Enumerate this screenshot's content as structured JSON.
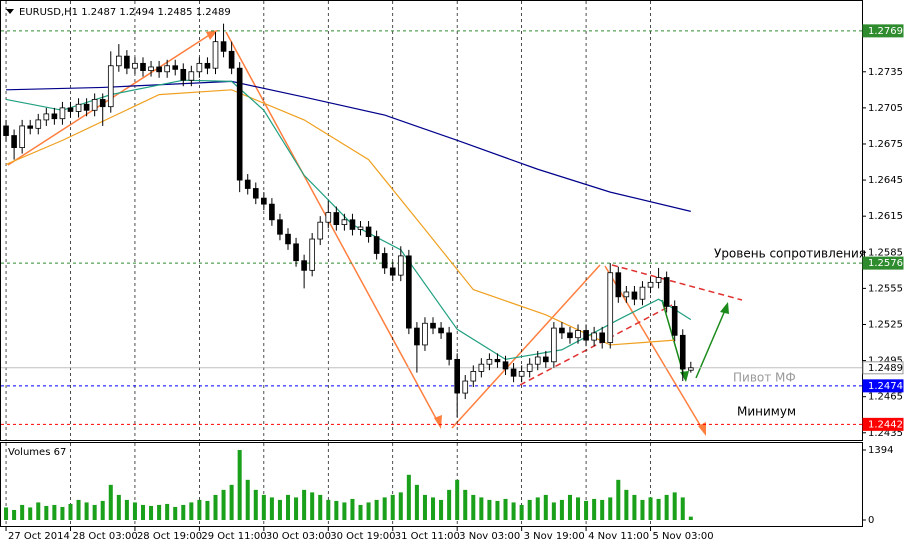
{
  "chart_data": {
    "type": "candlestick",
    "title": "EURUSD,H1  1.2487 1.2494 1.2485 1.2489",
    "open": [
      1.269,
      1.2682,
      1.2672,
      1.269,
      1.2688,
      1.2695,
      1.27,
      1.2696,
      1.2705,
      1.2702,
      1.2708,
      1.2703,
      1.2712,
      1.2706,
      1.274,
      1.2748,
      1.2738,
      1.2742,
      1.2736,
      1.2739,
      1.2735,
      1.274,
      1.2737,
      1.2728,
      1.2735,
      1.2742,
      1.2738,
      1.276,
      1.2752,
      1.2738,
      1.2645,
      1.2638,
      1.263,
      1.2625,
      1.2612,
      1.26,
      1.2592,
      1.2578,
      1.257,
      1.2596,
      1.261,
      1.2618,
      1.2608,
      1.2612,
      1.2604,
      1.2606,
      1.2598,
      1.2584,
      1.2572,
      1.2566,
      1.2582,
      1.2522,
      1.2508,
      1.2526,
      1.2522,
      1.2518,
      1.2496,
      1.2468,
      1.2478,
      1.2486,
      1.2492,
      1.2496,
      1.2494,
      1.2488,
      1.2482,
      1.2486,
      1.2492,
      1.2498,
      1.2494,
      1.2522,
      1.2518,
      1.2514,
      1.252,
      1.2512,
      1.2518,
      1.251,
      1.2568,
      1.2548,
      1.2552,
      1.2546,
      1.2556,
      1.256,
      1.2564,
      1.254,
      1.2516,
      1.2487
    ],
    "high": [
      1.2695,
      1.2687,
      1.2695,
      1.2695,
      1.27,
      1.2705,
      1.2705,
      1.271,
      1.271,
      1.2713,
      1.2713,
      1.2717,
      1.2717,
      1.2752,
      1.2758,
      1.2753,
      1.2747,
      1.2747,
      1.2744,
      1.2744,
      1.2745,
      1.2745,
      1.2742,
      1.274,
      1.2747,
      1.2747,
      1.2768,
      1.2775,
      1.276,
      1.2743,
      1.265,
      1.2643,
      1.2635,
      1.263,
      1.2617,
      1.2605,
      1.2597,
      1.2583,
      1.2601,
      1.2615,
      1.2628,
      1.2623,
      1.2617,
      1.2617,
      1.2611,
      1.2611,
      1.2603,
      1.2589,
      1.2577,
      1.259,
      1.2587,
      1.2527,
      1.2531,
      1.2531,
      1.2527,
      1.2523,
      1.2501,
      1.2483,
      1.2491,
      1.2497,
      1.2501,
      1.2501,
      1.2499,
      1.2493,
      1.2491,
      1.2497,
      1.2503,
      1.2503,
      1.2527,
      1.2527,
      1.2523,
      1.2525,
      1.2525,
      1.2523,
      1.2523,
      1.2576,
      1.2573,
      1.2557,
      1.2557,
      1.2561,
      1.2565,
      1.2572,
      1.2569,
      1.2545,
      1.2521,
      1.2494
    ],
    "low": [
      1.2677,
      1.2662,
      1.2667,
      1.2683,
      1.2683,
      1.269,
      1.2691,
      1.2691,
      1.2697,
      1.2697,
      1.2698,
      1.2698,
      1.269,
      1.2701,
      1.2735,
      1.2733,
      1.2733,
      1.2731,
      1.2731,
      1.273,
      1.273,
      1.2732,
      1.2723,
      1.2723,
      1.273,
      1.2733,
      1.2733,
      1.2747,
      1.2733,
      1.2635,
      1.2633,
      1.2625,
      1.262,
      1.2607,
      1.2595,
      1.2587,
      1.2573,
      1.2555,
      1.2565,
      1.2591,
      1.2605,
      1.2603,
      1.2603,
      1.2599,
      1.2599,
      1.2593,
      1.2579,
      1.2567,
      1.2561,
      1.2561,
      1.2517,
      1.2485,
      1.2503,
      1.2517,
      1.2513,
      1.2491,
      1.2448,
      1.2463,
      1.2473,
      1.2481,
      1.2487,
      1.2489,
      1.2483,
      1.2477,
      1.2477,
      1.2481,
      1.2487,
      1.2489,
      1.2489,
      1.2513,
      1.2509,
      1.2509,
      1.2507,
      1.2507,
      1.2505,
      1.2505,
      1.2543,
      1.2543,
      1.2541,
      1.2541,
      1.2551,
      1.2555,
      1.2535,
      1.2511,
      1.2478,
      1.2485
    ],
    "close": [
      1.2682,
      1.2672,
      1.269,
      1.2688,
      1.2695,
      1.27,
      1.2696,
      1.2705,
      1.2702,
      1.2708,
      1.2703,
      1.2712,
      1.2706,
      1.274,
      1.2748,
      1.2738,
      1.2742,
      1.2736,
      1.2739,
      1.2735,
      1.274,
      1.2737,
      1.2728,
      1.2735,
      1.2742,
      1.2738,
      1.276,
      1.2752,
      1.2738,
      1.2645,
      1.2638,
      1.263,
      1.2625,
      1.2612,
      1.26,
      1.2592,
      1.2578,
      1.257,
      1.2596,
      1.261,
      1.2618,
      1.2608,
      1.2612,
      1.2604,
      1.2606,
      1.2598,
      1.2584,
      1.2572,
      1.2566,
      1.2582,
      1.2522,
      1.2508,
      1.2526,
      1.2522,
      1.2518,
      1.2496,
      1.2468,
      1.2478,
      1.2486,
      1.2492,
      1.2496,
      1.2494,
      1.2488,
      1.2482,
      1.2486,
      1.2492,
      1.2498,
      1.2494,
      1.2522,
      1.2518,
      1.2514,
      1.252,
      1.2512,
      1.2518,
      1.251,
      1.2568,
      1.2548,
      1.2552,
      1.2546,
      1.2556,
      1.256,
      1.2564,
      1.254,
      1.2516,
      1.2488,
      1.2489
    ],
    "up_color": "#ffffff",
    "down_color": "#000000",
    "xlim": [
      -0.75,
      106.25
    ],
    "xticks": [
      {
        "value": 0,
        "label": "27 Oct 2014"
      },
      {
        "value": 8,
        "label": "28 Oct 03:00"
      },
      {
        "value": 16,
        "label": "28 Oct 19:00"
      },
      {
        "value": 24,
        "label": "29 Oct 11:00"
      },
      {
        "value": 32,
        "label": "30 Oct 03:00"
      },
      {
        "value": 40,
        "label": "30 Oct 19:00"
      },
      {
        "value": 48,
        "label": "31 Oct 11:00"
      },
      {
        "value": 56,
        "label": "3 Nov 03:00"
      },
      {
        "value": 64,
        "label": "3 Nov 19:00"
      },
      {
        "value": 72,
        "label": "4 Nov 11:00"
      },
      {
        "value": 80,
        "label": "5 Nov 03:00"
      }
    ],
    "ylim": [
      1.2429,
      1.2788
    ],
    "yticks": [
      1.2435,
      1.2465,
      1.2495,
      1.2525,
      1.2555,
      1.2585,
      1.2615,
      1.2645,
      1.2675,
      1.2705,
      1.2735
    ],
    "grid": true,
    "moving_averages": [
      {
        "color": "#00008b",
        "x": [
          0,
          12,
          28,
          37,
          47,
          56,
          66,
          75,
          85
        ],
        "values": [
          1.272,
          1.2722,
          1.2727,
          1.2714,
          1.2699,
          1.2678,
          1.2654,
          1.2635,
          1.2619
        ]
      },
      {
        "color": "#f0a020",
        "x": [
          0,
          7,
          13,
          19,
          28,
          37,
          45,
          52,
          58,
          67,
          75,
          83
        ],
        "values": [
          1.2658,
          1.2678,
          1.2697,
          1.2716,
          1.272,
          1.2695,
          1.2662,
          1.2604,
          1.2554,
          1.2533,
          1.2508,
          1.2512
        ]
      },
      {
        "color": "#20a080",
        "x": [
          0,
          7,
          13,
          22,
          28,
          32,
          37,
          43,
          49,
          56,
          62,
          69,
          76,
          81,
          85
        ],
        "values": [
          1.2712,
          1.2703,
          1.2716,
          1.2728,
          1.2727,
          1.2703,
          1.2649,
          1.2608,
          1.2587,
          1.2521,
          1.2496,
          1.2504,
          1.2529,
          1.2546,
          1.2529
        ]
      }
    ],
    "levels": [
      {
        "value": 1.2769,
        "color": "#2e8b2e",
        "dashed": true
      },
      {
        "value": 1.2576,
        "color": "#2e8b2e",
        "dashed": true
      },
      {
        "value": 1.2489,
        "color": "#c0c0c0",
        "dashed": false
      },
      {
        "value": 1.2474,
        "color": "#0000ff",
        "dashed": true
      },
      {
        "value": 1.2442,
        "color": "#ff0000",
        "dashed": true
      }
    ],
    "annotations": [
      "Уровень сопротивления",
      "Пивот МФ",
      "Минимум"
    ],
    "volume": {
      "label": "Volumes 67",
      "color": "#1aa01a",
      "ylim": [
        0,
        1394
      ],
      "yticks": [
        0,
        1394
      ],
      "values": [
        250,
        200,
        300,
        250,
        350,
        280,
        300,
        260,
        320,
        400,
        350,
        300,
        380,
        700,
        500,
        400,
        350,
        300,
        280,
        300,
        320,
        260,
        300,
        350,
        400,
        380,
        500,
        600,
        700,
        1394,
        800,
        600,
        500,
        450,
        400,
        500,
        450,
        600,
        550,
        500,
        400,
        380,
        350,
        420,
        300,
        350,
        400,
        450,
        500,
        550,
        900,
        700,
        500,
        450,
        400,
        600,
        800,
        600,
        500,
        450,
        400,
        380,
        420,
        350,
        300,
        400,
        450,
        500,
        350,
        400,
        500,
        450,
        380,
        420,
        400,
        450,
        800,
        600,
        500,
        400,
        450,
        420,
        500,
        550,
        450,
        67
      ]
    }
  }
}
